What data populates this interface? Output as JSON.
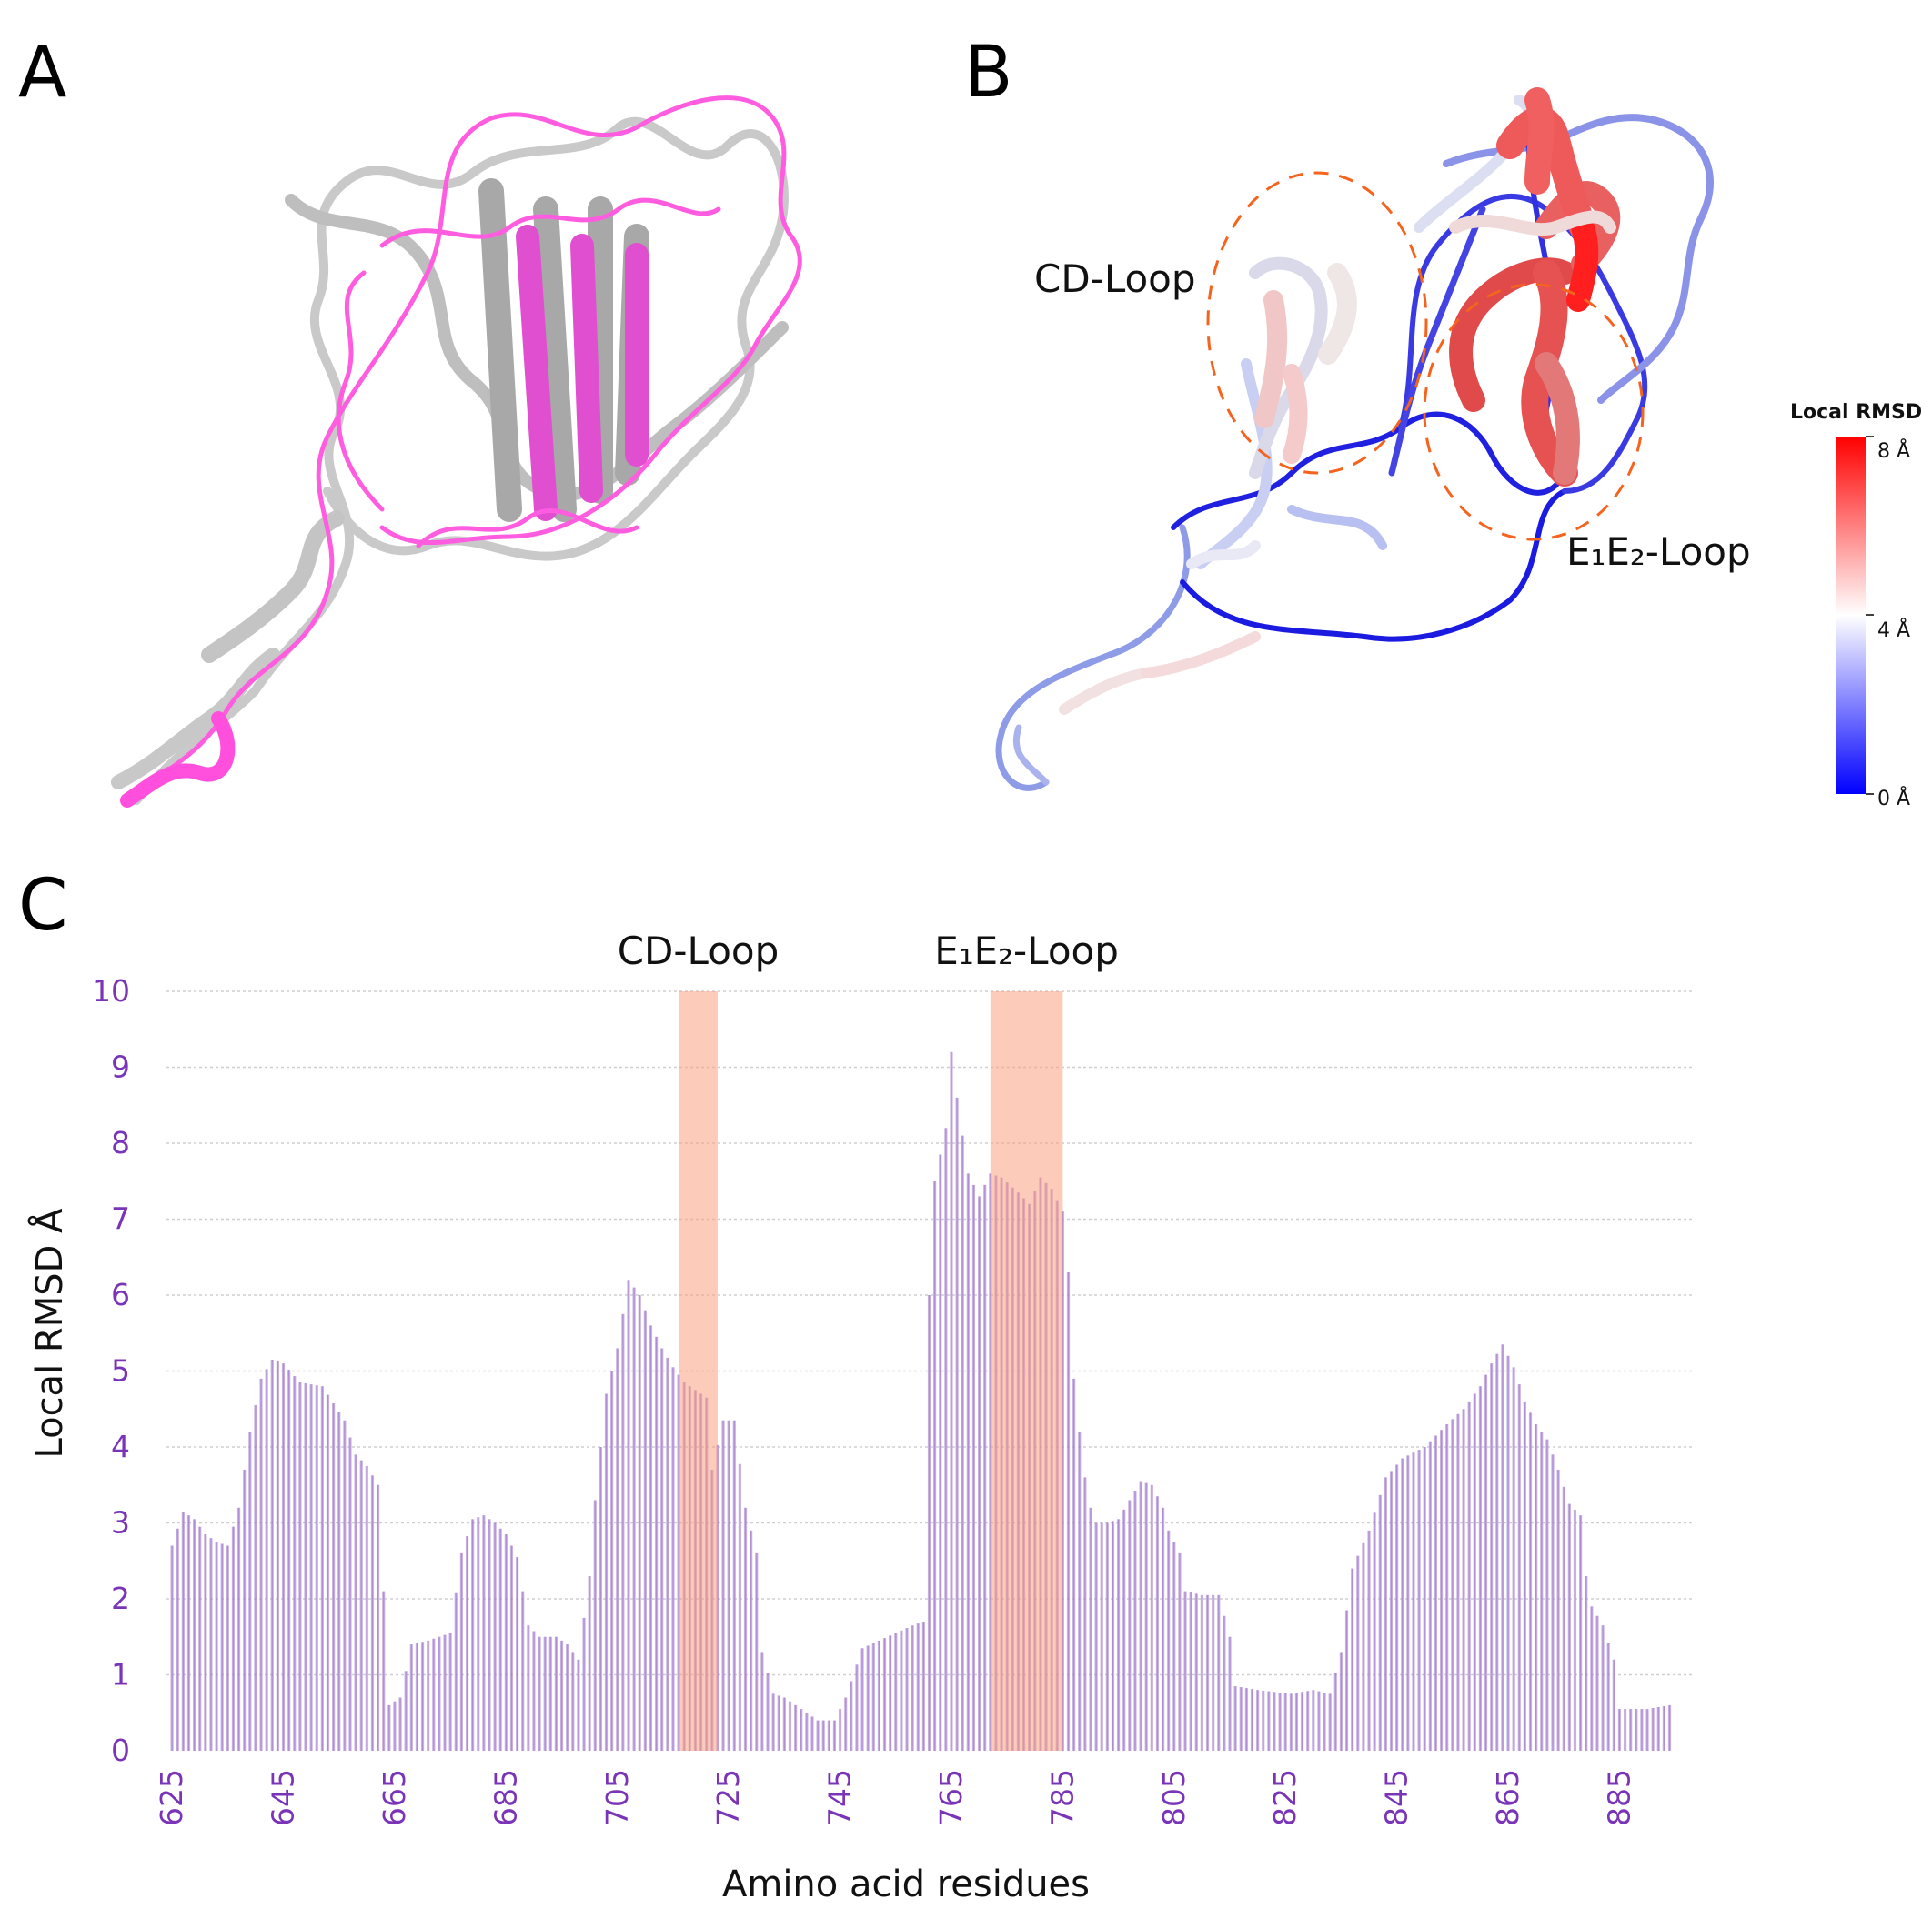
{
  "panels": {
    "a": {
      "letter": "A"
    },
    "b": {
      "letter": "B",
      "cd_label": "CD-Loop",
      "e1e2_label": "E₁E₂-Loop",
      "scale_title": "Local RMSD",
      "scale_ticks": [
        "8 Å",
        "4 Å",
        "0 Å"
      ],
      "scale_colors": {
        "high": "#ff0000",
        "mid": "#ffffff",
        "low": "#0000ff"
      }
    },
    "c": {
      "letter": "C"
    }
  },
  "colors": {
    "structure_gray": "#bdbdbd",
    "structure_magenta": "#ff3fdc",
    "bar": "#b79ad8",
    "highlight": "#f9a181",
    "tick_text": "#7a34b8"
  },
  "chart_data": {
    "type": "bar",
    "xlabel": "Amino acid residues",
    "ylabel": "Local RMSD Å",
    "ylim": [
      0,
      10
    ],
    "yticks": [
      0,
      1,
      2,
      3,
      4,
      5,
      6,
      7,
      8,
      9,
      10
    ],
    "xlim": [
      624,
      898
    ],
    "xticks": [
      625,
      645,
      665,
      685,
      705,
      725,
      745,
      765,
      785,
      805,
      825,
      845,
      865,
      885
    ],
    "highlights": [
      {
        "label": "CD-Loop",
        "start": 716,
        "end": 723
      },
      {
        "label": "E₁E₂-Loop",
        "start": 772,
        "end": 785
      }
    ],
    "profile": [
      [
        625,
        2.7
      ],
      [
        627,
        3.15
      ],
      [
        629,
        3.05
      ],
      [
        631,
        2.85
      ],
      [
        633,
        2.75
      ],
      [
        635,
        2.7
      ],
      [
        637,
        3.2
      ],
      [
        639,
        4.2
      ],
      [
        641,
        4.9
      ],
      [
        643,
        5.15
      ],
      [
        645,
        5.1
      ],
      [
        648,
        4.85
      ],
      [
        652,
        4.8
      ],
      [
        656,
        4.35
      ],
      [
        658,
        3.9
      ],
      [
        660,
        3.75
      ],
      [
        662,
        3.5
      ],
      [
        663,
        2.1
      ],
      [
        664,
        0.6
      ],
      [
        666,
        0.7
      ],
      [
        668,
        1.4
      ],
      [
        671,
        1.45
      ],
      [
        673,
        1.5
      ],
      [
        675,
        1.55
      ],
      [
        677,
        2.6
      ],
      [
        679,
        3.05
      ],
      [
        681,
        3.1
      ],
      [
        683,
        3.0
      ],
      [
        685,
        2.85
      ],
      [
        687,
        2.55
      ],
      [
        689,
        1.65
      ],
      [
        691,
        1.5
      ],
      [
        694,
        1.5
      ],
      [
        696,
        1.4
      ],
      [
        698,
        1.2
      ],
      [
        700,
        2.3
      ],
      [
        701,
        3.3
      ],
      [
        703,
        4.7
      ],
      [
        705,
        5.3
      ],
      [
        707,
        6.2
      ],
      [
        709,
        6.0
      ],
      [
        711,
        5.6
      ],
      [
        713,
        5.3
      ],
      [
        715,
        5.05
      ],
      [
        717,
        4.85
      ],
      [
        719,
        4.75
      ],
      [
        721,
        4.65
      ],
      [
        722,
        3.7
      ],
      [
        724,
        4.35
      ],
      [
        726,
        4.35
      ],
      [
        728,
        3.2
      ],
      [
        730,
        2.6
      ],
      [
        731,
        1.3
      ],
      [
        733,
        0.75
      ],
      [
        735,
        0.7
      ],
      [
        737,
        0.6
      ],
      [
        739,
        0.5
      ],
      [
        741,
        0.4
      ],
      [
        744,
        0.4
      ],
      [
        746,
        0.7
      ],
      [
        749,
        1.35
      ],
      [
        752,
        1.45
      ],
      [
        755,
        1.55
      ],
      [
        758,
        1.65
      ],
      [
        760,
        1.7
      ],
      [
        761,
        6.0
      ],
      [
        762,
        7.5
      ],
      [
        764,
        8.2
      ],
      [
        765,
        9.2
      ],
      [
        766,
        8.6
      ],
      [
        768,
        7.6
      ],
      [
        770,
        7.3
      ],
      [
        772,
        7.6
      ],
      [
        774,
        7.55
      ],
      [
        777,
        7.35
      ],
      [
        779,
        7.2
      ],
      [
        781,
        7.55
      ],
      [
        783,
        7.4
      ],
      [
        785,
        7.1
      ],
      [
        786,
        6.3
      ],
      [
        787,
        4.9
      ],
      [
        788,
        4.2
      ],
      [
        789,
        3.6
      ],
      [
        790,
        3.2
      ],
      [
        791,
        3.0
      ],
      [
        793,
        3.0
      ],
      [
        795,
        3.05
      ],
      [
        797,
        3.3
      ],
      [
        799,
        3.55
      ],
      [
        801,
        3.5
      ],
      [
        803,
        3.2
      ],
      [
        804,
        2.9
      ],
      [
        806,
        2.6
      ],
      [
        807,
        2.1
      ],
      [
        810,
        2.05
      ],
      [
        813,
        2.05
      ],
      [
        815,
        1.5
      ],
      [
        816,
        0.85
      ],
      [
        820,
        0.8
      ],
      [
        826,
        0.75
      ],
      [
        830,
        0.8
      ],
      [
        833,
        0.75
      ],
      [
        835,
        1.3
      ],
      [
        837,
        2.4
      ],
      [
        840,
        2.9
      ],
      [
        843,
        3.6
      ],
      [
        846,
        3.85
      ],
      [
        850,
        4.0
      ],
      [
        854,
        4.3
      ],
      [
        857,
        4.5
      ],
      [
        860,
        4.8
      ],
      [
        862,
        5.1
      ],
      [
        864,
        5.35
      ],
      [
        866,
        5.05
      ],
      [
        868,
        4.6
      ],
      [
        870,
        4.3
      ],
      [
        872,
        4.1
      ],
      [
        874,
        3.7
      ],
      [
        876,
        3.25
      ],
      [
        878,
        3.1
      ],
      [
        879,
        2.3
      ],
      [
        880,
        1.9
      ],
      [
        882,
        1.65
      ],
      [
        884,
        1.2
      ],
      [
        885,
        0.55
      ],
      [
        890,
        0.55
      ],
      [
        894,
        0.6
      ]
    ]
  }
}
